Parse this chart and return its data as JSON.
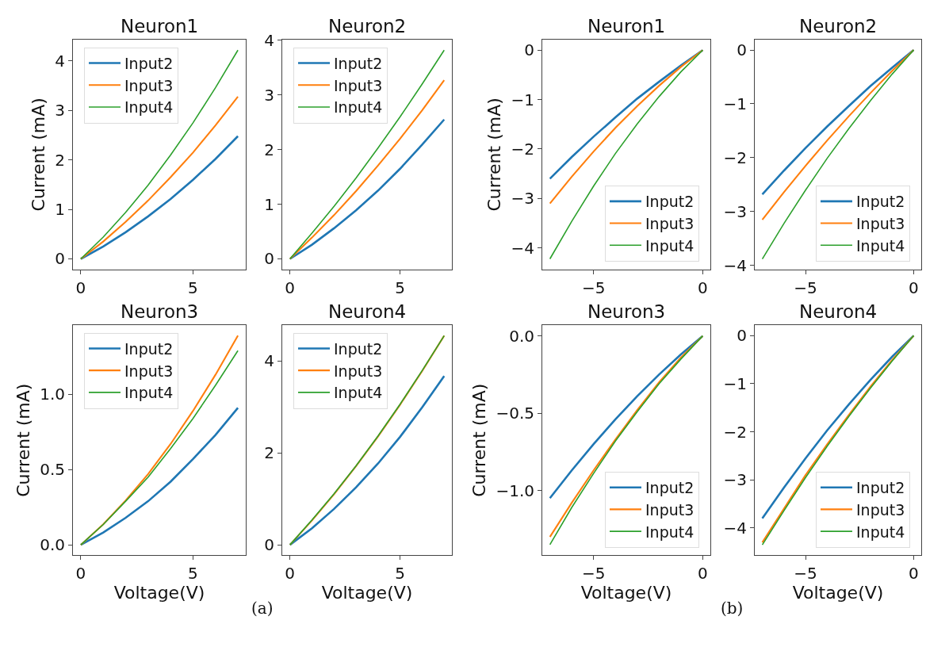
{
  "chart_data": [
    {
      "type": "line",
      "title": "Neuron1",
      "ylabel": "Current (mA)",
      "x": [
        0,
        1,
        2,
        3,
        4,
        5,
        6,
        7
      ],
      "xlim": [
        -0.35,
        7.35
      ],
      "xticks": [
        0,
        5
      ],
      "ylim": [
        -0.21,
        4.43
      ],
      "yticks": [
        0,
        1,
        2,
        3,
        4
      ],
      "legend": "top left",
      "series": [
        {
          "name": "Input2",
          "color": "#1f77b4",
          "values": [
            0,
            0.25,
            0.54,
            0.86,
            1.21,
            1.6,
            2.02,
            2.48
          ]
        },
        {
          "name": "Input3",
          "color": "#ff7f0e",
          "values": [
            0,
            0.35,
            0.75,
            1.18,
            1.65,
            2.15,
            2.7,
            3.28
          ]
        },
        {
          "name": "Input4",
          "color": "#2ca02c",
          "values": [
            0,
            0.44,
            0.94,
            1.49,
            2.1,
            2.75,
            3.46,
            4.22
          ]
        }
      ]
    },
    {
      "type": "line",
      "title": "Neuron2",
      "x": [
        0,
        1,
        2,
        3,
        4,
        5,
        6,
        7
      ],
      "xlim": [
        -0.35,
        7.35
      ],
      "xticks": [
        0,
        5
      ],
      "ylim": [
        -0.19,
        4.01
      ],
      "yticks": [
        0,
        1,
        2,
        3,
        4
      ],
      "legend": "top left",
      "series": [
        {
          "name": "Input2",
          "color": "#1f77b4",
          "values": [
            0,
            0.26,
            0.56,
            0.89,
            1.25,
            1.65,
            2.09,
            2.55
          ]
        },
        {
          "name": "Input3",
          "color": "#ff7f0e",
          "values": [
            0,
            0.39,
            0.8,
            1.24,
            1.71,
            2.2,
            2.72,
            3.27
          ]
        },
        {
          "name": "Input4",
          "color": "#2ca02c",
          "values": [
            0,
            0.47,
            0.96,
            1.48,
            2.03,
            2.6,
            3.2,
            3.82
          ]
        }
      ]
    },
    {
      "type": "line",
      "title": "Neuron1",
      "ylabel": "Current (mA)",
      "x": [
        -7,
        -6,
        -5,
        -4,
        -3,
        -2,
        -1,
        0
      ],
      "xlim": [
        -7.35,
        0.35
      ],
      "xticks": [
        -5,
        0
      ],
      "ylim": [
        -4.43,
        0.21
      ],
      "yticks": [
        {
          "value": -4,
          "label": "−4"
        },
        {
          "value": -3,
          "label": "−3"
        },
        {
          "value": -2,
          "label": "−2"
        },
        {
          "value": -1,
          "label": "−1"
        },
        0
      ],
      "legend": "bottom right",
      "series": [
        {
          "name": "Input2",
          "color": "#1f77b4",
          "values": [
            -2.6,
            -2.16,
            -1.75,
            -1.36,
            -0.98,
            -0.64,
            -0.31,
            0
          ]
        },
        {
          "name": "Input3",
          "color": "#ff7f0e",
          "values": [
            -3.1,
            -2.56,
            -2.05,
            -1.57,
            -1.13,
            -0.72,
            -0.34,
            0
          ]
        },
        {
          "name": "Input4",
          "color": "#2ca02c",
          "values": [
            -4.22,
            -3.46,
            -2.75,
            -2.09,
            -1.49,
            -0.94,
            -0.44,
            0
          ]
        }
      ]
    },
    {
      "type": "line",
      "title": "Neuron2",
      "x": [
        -7,
        -6,
        -5,
        -4,
        -3,
        -2,
        -1,
        0
      ],
      "xlim": [
        -7.35,
        0.35
      ],
      "xticks": [
        -5,
        0
      ],
      "ylim": [
        -4.07,
        0.19
      ],
      "yticks": [
        {
          "value": -4,
          "label": "−4"
        },
        {
          "value": -3,
          "label": "−3"
        },
        {
          "value": -2,
          "label": "−2"
        },
        {
          "value": -1,
          "label": "−1"
        },
        0
      ],
      "legend": "bottom right",
      "series": [
        {
          "name": "Input2",
          "color": "#1f77b4",
          "values": [
            -2.68,
            -2.24,
            -1.82,
            -1.42,
            -1.04,
            -0.67,
            -0.33,
            0
          ]
        },
        {
          "name": "Input3",
          "color": "#ff7f0e",
          "values": [
            -3.15,
            -2.64,
            -2.15,
            -1.68,
            -1.23,
            -0.8,
            -0.39,
            0
          ]
        },
        {
          "name": "Input4",
          "color": "#2ca02c",
          "values": [
            -3.88,
            -3.22,
            -2.6,
            -2.01,
            -1.46,
            -0.94,
            -0.45,
            0
          ]
        }
      ]
    },
    {
      "type": "line",
      "title": "Neuron3",
      "xlabel": "Voltage(V)",
      "ylabel": "Current (mA)",
      "annotations": [
        "(a)"
      ],
      "x": [
        0,
        1,
        2,
        3,
        4,
        5,
        6,
        7
      ],
      "xlim": [
        -0.35,
        7.35
      ],
      "xticks": [
        0,
        5
      ],
      "ylim": [
        -0.07,
        1.46
      ],
      "yticks": [
        {
          "value": 0,
          "label": "0.0"
        },
        {
          "value": 0.5,
          "label": "0.5"
        },
        {
          "value": 1,
          "label": "1.0"
        }
      ],
      "legend": "top left",
      "series": [
        {
          "name": "Input2",
          "color": "#1f77b4",
          "values": [
            0,
            0.082,
            0.18,
            0.29,
            0.42,
            0.57,
            0.73,
            0.91
          ]
        },
        {
          "name": "Input3",
          "color": "#ff7f0e",
          "values": [
            0,
            0.137,
            0.295,
            0.47,
            0.67,
            0.89,
            1.13,
            1.39
          ]
        },
        {
          "name": "Input4",
          "color": "#2ca02c",
          "values": [
            0,
            0.135,
            0.29,
            0.45,
            0.64,
            0.84,
            1.06,
            1.29
          ]
        }
      ]
    },
    {
      "type": "line",
      "title": "Neuron4",
      "xlabel": "Voltage(V)",
      "x": [
        0,
        1,
        2,
        3,
        4,
        5,
        6,
        7
      ],
      "xlim": [
        -0.35,
        7.35
      ],
      "xticks": [
        0,
        5
      ],
      "ylim": [
        -0.23,
        4.78
      ],
      "yticks": [
        0,
        2,
        4
      ],
      "legend": "top left",
      "series": [
        {
          "name": "Input2",
          "color": "#1f77b4",
          "values": [
            0,
            0.36,
            0.78,
            1.25,
            1.77,
            2.35,
            2.99,
            3.67
          ]
        },
        {
          "name": "Input3",
          "color": "#ff7f0e",
          "values": [
            0,
            0.53,
            1.1,
            1.71,
            2.36,
            3.05,
            3.78,
            4.55
          ]
        },
        {
          "name": "Input4",
          "color": "#2ca02c",
          "values": [
            0,
            0.54,
            1.11,
            1.72,
            2.37,
            3.06,
            3.79,
            4.55
          ]
        }
      ]
    },
    {
      "type": "line",
      "title": "Neuron3",
      "xlabel": "Voltage(V)",
      "ylabel": "Current (mA)",
      "annotations": [
        "(b)"
      ],
      "x": [
        -7,
        -6,
        -5,
        -4,
        -3,
        -2,
        -1,
        0
      ],
      "xlim": [
        -7.35,
        0.35
      ],
      "xticks": [
        -5,
        0
      ],
      "ylim": [
        -1.42,
        0.07
      ],
      "yticks": [
        {
          "value": -1,
          "label": "−1.0"
        },
        {
          "value": -0.5,
          "label": "−0.5"
        },
        {
          "value": 0,
          "label": "0.0"
        }
      ],
      "legend": "bottom right",
      "series": [
        {
          "name": "Input2",
          "color": "#1f77b4",
          "values": [
            -1.05,
            -0.87,
            -0.7,
            -0.54,
            -0.39,
            -0.25,
            -0.12,
            0
          ]
        },
        {
          "name": "Input3",
          "color": "#ff7f0e",
          "values": [
            -1.3,
            -1.08,
            -0.87,
            -0.67,
            -0.48,
            -0.3,
            -0.14,
            0
          ]
        },
        {
          "name": "Input4",
          "color": "#2ca02c",
          "values": [
            -1.35,
            -1.11,
            -0.89,
            -0.68,
            -0.49,
            -0.31,
            -0.15,
            0
          ]
        }
      ]
    },
    {
      "type": "line",
      "title": "Neuron4",
      "xlabel": "Voltage(V)",
      "x": [
        -7,
        -6,
        -5,
        -4,
        -3,
        -2,
        -1,
        0
      ],
      "xlim": [
        -7.35,
        0.35
      ],
      "xticks": [
        -5,
        0
      ],
      "ylim": [
        -4.57,
        0.22
      ],
      "yticks": [
        {
          "value": -4,
          "label": "−4"
        },
        {
          "value": -3,
          "label": "−3"
        },
        {
          "value": -2,
          "label": "−2"
        },
        {
          "value": -1,
          "label": "−1"
        },
        0
      ],
      "legend": "bottom right",
      "series": [
        {
          "name": "Input2",
          "color": "#1f77b4",
          "values": [
            -3.8,
            -3.16,
            -2.55,
            -1.97,
            -1.43,
            -0.92,
            -0.44,
            0
          ]
        },
        {
          "name": "Input3",
          "color": "#ff7f0e",
          "values": [
            -4.3,
            -3.6,
            -2.9,
            -2.26,
            -1.65,
            -1.06,
            -0.51,
            0
          ]
        },
        {
          "name": "Input4",
          "color": "#2ca02c",
          "values": [
            -4.35,
            -3.64,
            -2.95,
            -2.3,
            -1.68,
            -1.09,
            -0.53,
            0
          ]
        }
      ]
    }
  ]
}
